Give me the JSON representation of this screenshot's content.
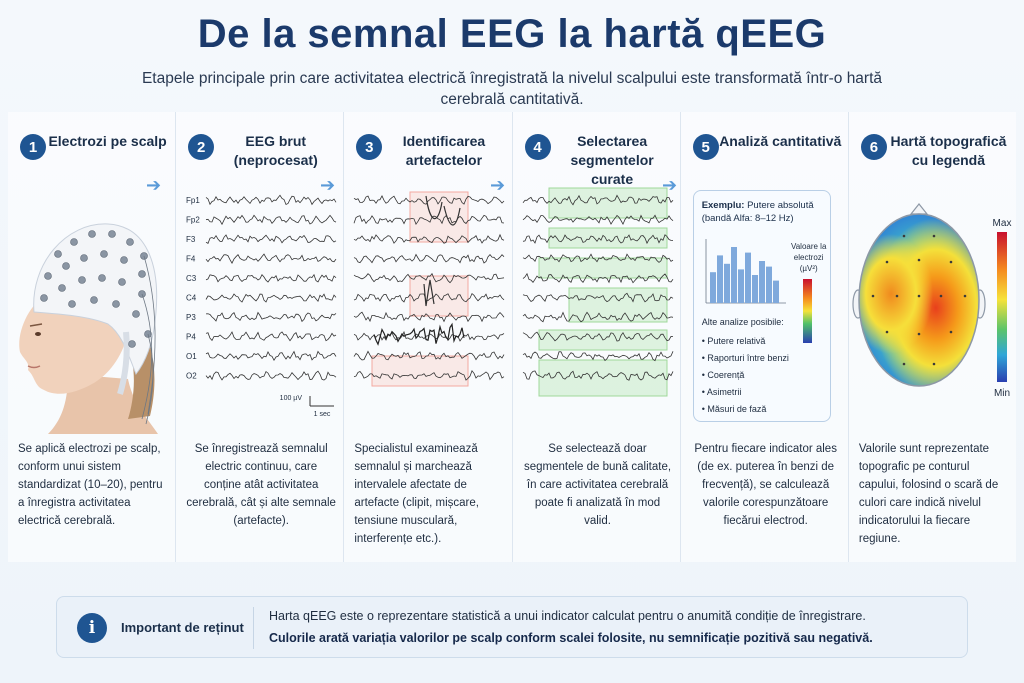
{
  "header": {
    "title": "De la semnal EEG la hartă qEEG",
    "subtitle": "Etapele principale prin care activitatea electrică înregistrată la nivelul scalpului este transformată într-o hartă cerebrală cantitativă."
  },
  "steps": [
    {
      "num": "1",
      "title": "Electrozi pe scalp",
      "desc": "Se aplică electrozi pe scalp, conform unui sistem standardizat (10–20), pentru a înregistra activitatea electrică cerebrală."
    },
    {
      "num": "2",
      "title": "EEG brut (neprocesat)",
      "desc": "Se înregistrează semnalul electric continuu, care conține atât activitatea cerebrală, cât și alte semnale (artefacte)."
    },
    {
      "num": "3",
      "title": "Identificarea artefactelor",
      "desc": "Specialistul examinează semnalul și marchează intervalele afectate de artefacte (clipit, mișcare, tensiune musculară, interferențe etc.)."
    },
    {
      "num": "4",
      "title": "Selectarea segmentelor curate",
      "desc": "Se selectează doar segmentele de bună calitate, în care activitatea cerebrală poate fi analizată în mod valid."
    },
    {
      "num": "5",
      "title": "Analiză cantitativă",
      "desc": "Pentru fiecare indicator ales (de ex. puterea în benzi de frecvență), se calculează valorile corespunzătoare fiecărui electrod."
    },
    {
      "num": "6",
      "title": "Hartă topografică cu legendă",
      "desc": "Valorile sunt reprezentate topografic pe conturul capului, folosind o scară de culori care indică nivelul indicatorului la fiecare regiune."
    }
  ],
  "eeg": {
    "channels": [
      "Fp1",
      "Fp2",
      "F3",
      "F4",
      "C3",
      "C4",
      "P3",
      "P4",
      "O1",
      "O2"
    ],
    "scale_amp": "100 µV",
    "scale_time": "1 sec"
  },
  "analysis": {
    "example_bold": "Exemplu:",
    "example_rest": "Putere absolută",
    "example_band": "(bandă Alfa: 8–12 Hz)",
    "legend": "Valoare la electrozi (µV²)",
    "bar_values": [
      0.55,
      0.85,
      0.7,
      1.0,
      0.6,
      0.9,
      0.5,
      0.75,
      0.65,
      0.4
    ],
    "other_title": "Alte analize posibile:",
    "other": [
      "Putere relativă",
      "Raporturi între benzi",
      "Coerență",
      "Asimetrii",
      "Măsuri de fază"
    ]
  },
  "topomap": {
    "max_label": "Max",
    "min_label": "Min"
  },
  "note": {
    "icon": "i",
    "label": "Important de reținut",
    "line1": "Harta qEEG este o reprezentare statistică a unui indicator calculat pentru o anumită condiție de înregistrare.",
    "line2": "Culorile arată variația valorilor pe scalp conform scalei folosite, nu semnificație pozitivă sau negativă."
  },
  "colors": {
    "accent": "#1f5592",
    "artifact_box": "#f4a9a0",
    "clean_box": "#9fd89a",
    "bar": "#7fa9dc"
  }
}
